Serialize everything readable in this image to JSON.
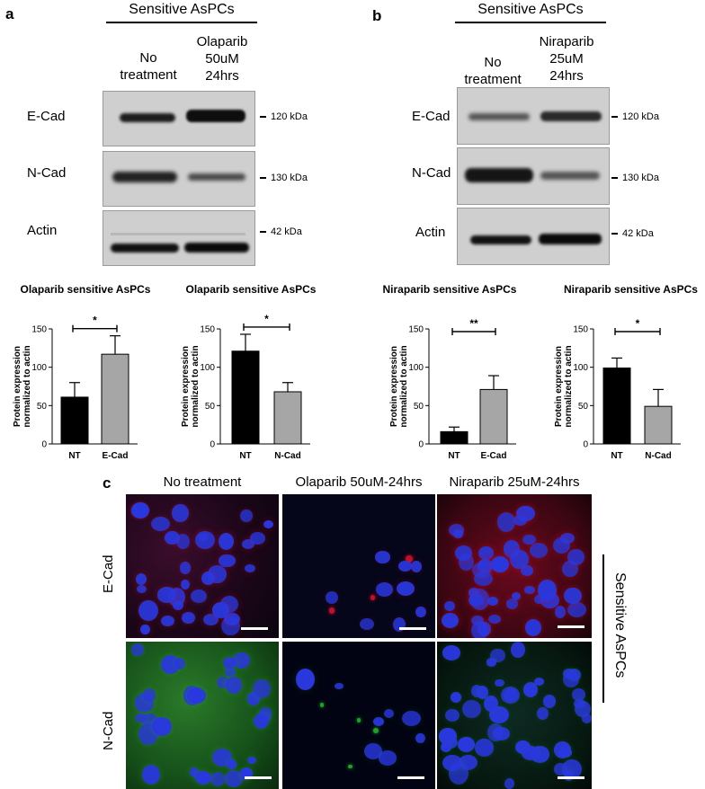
{
  "panel_a": {
    "letter": "a",
    "header": "Sensitive  AsPCs",
    "columns": [
      {
        "lines": [
          "No",
          "treatment"
        ]
      },
      {
        "lines": [
          "Olaparib",
          "50uM",
          "24hrs"
        ]
      }
    ],
    "rows": [
      {
        "label": "E-Cad",
        "kda": "120 kDa"
      },
      {
        "label": "N-Cad",
        "kda": "130 kDa"
      },
      {
        "label": "Actin",
        "kda": "42 kDa"
      }
    ]
  },
  "panel_b": {
    "letter": "b",
    "header": "Sensitive  AsPCs",
    "columns": [
      {
        "lines": [
          "No",
          "treatment"
        ]
      },
      {
        "lines": [
          "Niraparib",
          "25uM",
          "24hrs"
        ]
      }
    ],
    "rows": [
      {
        "label": "E-Cad",
        "kda": "120 kDa"
      },
      {
        "label": "N-Cad",
        "kda": "130 kDa"
      },
      {
        "label": "Actin",
        "kda": "42 kDa"
      }
    ]
  },
  "chart_data": [
    {
      "type": "bar",
      "title": "Olaparib sensitive AsPCs",
      "ylabel": "Protein expression normalized to actin",
      "categories": [
        "NT",
        "E-Cad"
      ],
      "values": [
        61,
        117
      ],
      "errors": [
        19,
        24
      ],
      "colors": [
        "#000000",
        "#a6a6a6"
      ],
      "ylim": [
        0,
        150
      ],
      "yticks": [
        "0",
        "50",
        "100",
        "150"
      ],
      "significance": "*"
    },
    {
      "type": "bar",
      "title": "Olaparib sensitive AsPCs",
      "ylabel": "Protein expression normalized to actin",
      "categories": [
        "NT",
        "N-Cad"
      ],
      "values": [
        121,
        68
      ],
      "errors": [
        22,
        12
      ],
      "colors": [
        "#000000",
        "#a6a6a6"
      ],
      "ylim": [
        0,
        150
      ],
      "yticks": [
        "0",
        "50",
        "100",
        "150"
      ],
      "significance": "*"
    },
    {
      "type": "bar",
      "title": "Niraparib sensitive AsPCs",
      "ylabel": "Protein expression normalized to actin",
      "categories": [
        "NT",
        "E-Cad"
      ],
      "values": [
        16,
        71
      ],
      "errors": [
        6,
        18
      ],
      "colors": [
        "#000000",
        "#a6a6a6"
      ],
      "ylim": [
        0,
        150
      ],
      "yticks": [
        "0",
        "50",
        "100",
        "150"
      ],
      "significance": "**"
    },
    {
      "type": "bar",
      "title": "Niraparib sensitive AsPCs",
      "ylabel": "Protein expression normalized to actin",
      "categories": [
        "NT",
        "N-Cad"
      ],
      "values": [
        99,
        49
      ],
      "errors": [
        13,
        22
      ],
      "colors": [
        "#000000",
        "#a6a6a6"
      ],
      "ylim": [
        0,
        150
      ],
      "yticks": [
        "0",
        "50",
        "100",
        "150"
      ],
      "significance": "*"
    }
  ],
  "panel_c": {
    "letter": "c",
    "columns": [
      "No treatment",
      "Olaparib 50uM-24hrs",
      "Niraparib 25uM-24hrs"
    ],
    "rows": [
      "E-Cad",
      "N-Cad"
    ],
    "side_label": "Sensitive  AsPCs",
    "colors": {
      "ecad_stain": "#c0102a",
      "ncad_stain": "#1fa02a",
      "nuclei": "#2a38e0",
      "background": "#05061a"
    }
  }
}
